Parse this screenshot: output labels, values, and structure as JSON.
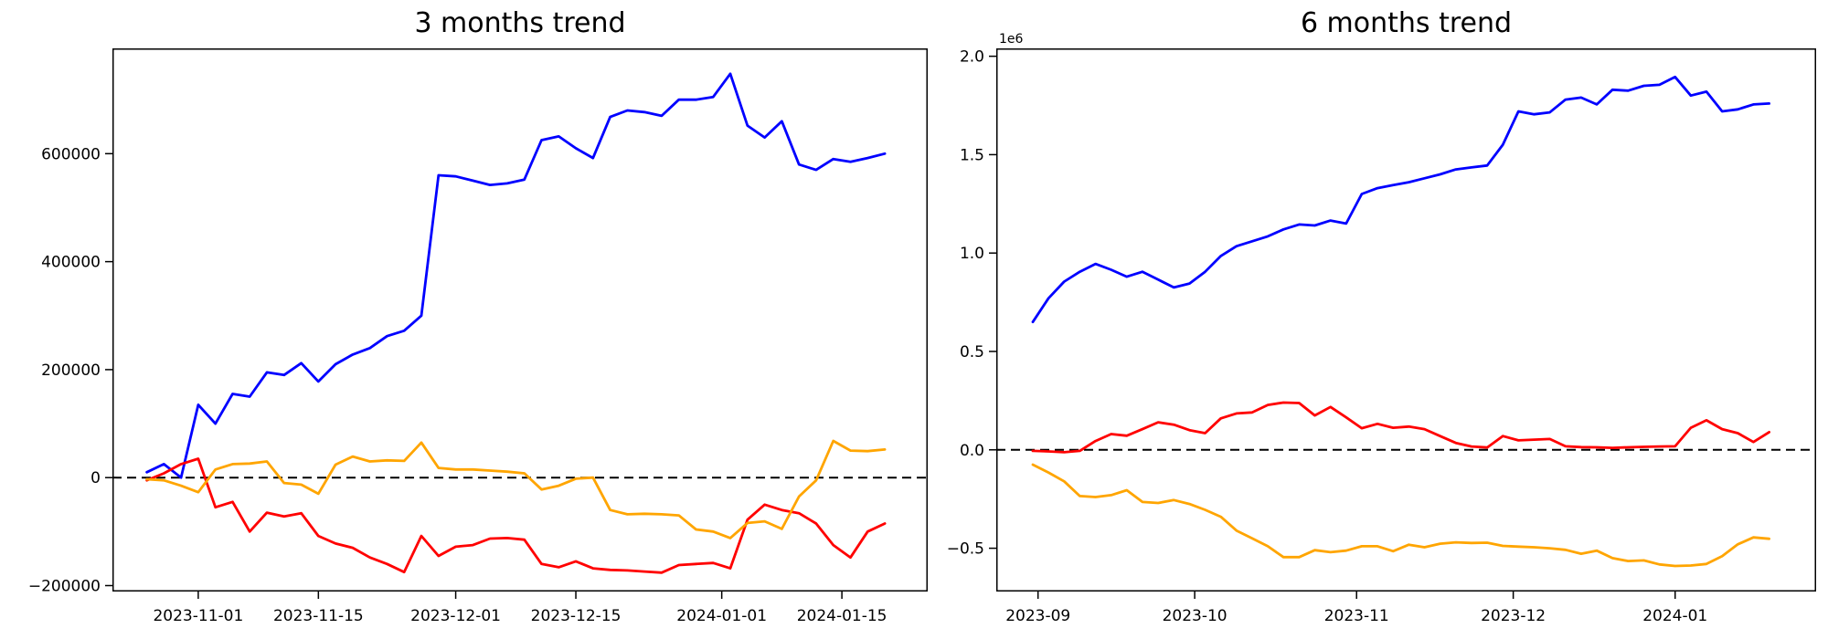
{
  "figure": {
    "background": "#ffffff",
    "zero_line_color": "#000000",
    "axis_color": "#000000"
  },
  "chart_data": [
    {
      "type": "line",
      "title": "3 months trend",
      "grid": false,
      "legend": "none",
      "zero_line_dashed": true,
      "y_offset_label": "",
      "xlim": [
        "2023-10-22",
        "2024-01-25"
      ],
      "ylim": [
        -211000,
        795000
      ],
      "xticks": [
        {
          "date": "2023-11-01",
          "label": "2023-11-01"
        },
        {
          "date": "2023-11-15",
          "label": "2023-11-15"
        },
        {
          "date": "2023-12-01",
          "label": "2023-12-01"
        },
        {
          "date": "2023-12-15",
          "label": "2023-12-15"
        },
        {
          "date": "2024-01-01",
          "label": "2024-01-01"
        },
        {
          "date": "2024-01-15",
          "label": "2024-01-15"
        }
      ],
      "yticks": [
        {
          "value": -200000,
          "label": "−200000"
        },
        {
          "value": 0,
          "label": "0"
        },
        {
          "value": 200000,
          "label": "200000"
        },
        {
          "value": 400000,
          "label": "400000"
        },
        {
          "value": 600000,
          "label": "600000"
        }
      ],
      "x": [
        "2023-10-26",
        "2023-10-28",
        "2023-10-30",
        "2023-11-01",
        "2023-11-03",
        "2023-11-05",
        "2023-11-07",
        "2023-11-09",
        "2023-11-11",
        "2023-11-13",
        "2023-11-15",
        "2023-11-17",
        "2023-11-19",
        "2023-11-21",
        "2023-11-23",
        "2023-11-25",
        "2023-11-27",
        "2023-11-29",
        "2023-12-01",
        "2023-12-03",
        "2023-12-05",
        "2023-12-07",
        "2023-12-09",
        "2023-12-11",
        "2023-12-13",
        "2023-12-15",
        "2023-12-17",
        "2023-12-19",
        "2023-12-21",
        "2023-12-23",
        "2023-12-25",
        "2023-12-27",
        "2023-12-29",
        "2023-12-31",
        "2024-01-02",
        "2024-01-04",
        "2024-01-06",
        "2024-01-08",
        "2024-01-10",
        "2024-01-12",
        "2024-01-14",
        "2024-01-16",
        "2024-01-18",
        "2024-01-20"
      ],
      "series": [
        {
          "name": "blue-line",
          "color": "#0000ff",
          "values": [
            10000,
            25000,
            0,
            135000,
            100000,
            155000,
            150000,
            195000,
            190000,
            212000,
            178000,
            210000,
            228000,
            240000,
            262000,
            272000,
            300000,
            560000,
            558000,
            550000,
            542000,
            545000,
            552000,
            625000,
            632000,
            610000,
            592000,
            668000,
            680000,
            677000,
            670000,
            700000,
            700000,
            705000,
            748000,
            652000,
            630000,
            660000,
            580000,
            570000,
            590000,
            585000,
            592000,
            600000
          ]
        },
        {
          "name": "red-line",
          "color": "#ff0000",
          "values": [
            -5000,
            8000,
            25000,
            35000,
            -55000,
            -45000,
            -100000,
            -65000,
            -72000,
            -66000,
            -108000,
            -122000,
            -130000,
            -148000,
            -160000,
            -175000,
            -108000,
            -145000,
            -128000,
            -125000,
            -113000,
            -112000,
            -115000,
            -160000,
            -166000,
            -155000,
            -168000,
            -171000,
            -172000,
            -174000,
            -176000,
            -162000,
            -160000,
            -158000,
            -168000,
            -78000,
            -50000,
            -60000,
            -66000,
            -85000,
            -125000,
            -148000,
            -100000,
            -85000
          ]
        },
        {
          "name": "orange-line",
          "color": "#ffa500",
          "values": [
            -3000,
            -5000,
            -15000,
            -27000,
            15000,
            25000,
            26000,
            30000,
            -10000,
            -13000,
            -30000,
            24000,
            39000,
            30000,
            32000,
            31000,
            65000,
            18000,
            15000,
            15000,
            13000,
            11000,
            8000,
            -22000,
            -15000,
            -2000,
            0,
            -60000,
            -68000,
            -67000,
            -68000,
            -70000,
            -96000,
            -100000,
            -112000,
            -84000,
            -81000,
            -95000,
            -35000,
            -5000,
            68000,
            50000,
            49000,
            52000
          ]
        }
      ]
    },
    {
      "type": "line",
      "title": "6 months trend",
      "grid": false,
      "legend": "none",
      "zero_line_dashed": true,
      "y_offset_label": "1e6",
      "xlim": [
        "2023-08-24",
        "2024-01-28"
      ],
      "ylim": [
        -720000,
        2040000
      ],
      "xticks": [
        {
          "date": "2023-09-01",
          "label": "2023-09"
        },
        {
          "date": "2023-10-01",
          "label": "2023-10"
        },
        {
          "date": "2023-11-01",
          "label": "2023-11"
        },
        {
          "date": "2023-12-01",
          "label": "2023-12"
        },
        {
          "date": "2024-01-01",
          "label": "2024-01"
        }
      ],
      "yticks": [
        {
          "value": -500000,
          "label": "−0.5"
        },
        {
          "value": 0,
          "label": "0.0"
        },
        {
          "value": 500000,
          "label": "0.5"
        },
        {
          "value": 1000000,
          "label": "1.0"
        },
        {
          "value": 1500000,
          "label": "1.5"
        },
        {
          "value": 2000000,
          "label": "2.0"
        }
      ],
      "x": [
        "2023-08-31",
        "2023-09-03",
        "2023-09-06",
        "2023-09-09",
        "2023-09-12",
        "2023-09-15",
        "2023-09-18",
        "2023-09-21",
        "2023-09-24",
        "2023-09-27",
        "2023-09-30",
        "2023-10-03",
        "2023-10-06",
        "2023-10-09",
        "2023-10-12",
        "2023-10-15",
        "2023-10-18",
        "2023-10-21",
        "2023-10-24",
        "2023-10-27",
        "2023-10-30",
        "2023-11-02",
        "2023-11-05",
        "2023-11-08",
        "2023-11-11",
        "2023-11-14",
        "2023-11-17",
        "2023-11-20",
        "2023-11-23",
        "2023-11-26",
        "2023-11-29",
        "2023-12-02",
        "2023-12-05",
        "2023-12-08",
        "2023-12-11",
        "2023-12-14",
        "2023-12-17",
        "2023-12-20",
        "2023-12-23",
        "2023-12-26",
        "2023-12-29",
        "2024-01-01",
        "2024-01-04",
        "2024-01-07",
        "2024-01-10",
        "2024-01-13",
        "2024-01-16",
        "2024-01-19"
      ],
      "series": [
        {
          "name": "blue-line",
          "color": "#0000ff",
          "values": [
            650000,
            770000,
            855000,
            905000,
            945000,
            915000,
            880000,
            905000,
            865000,
            825000,
            845000,
            905000,
            985000,
            1035000,
            1060000,
            1085000,
            1120000,
            1145000,
            1140000,
            1165000,
            1150000,
            1300000,
            1330000,
            1345000,
            1360000,
            1380000,
            1400000,
            1425000,
            1435000,
            1445000,
            1550000,
            1720000,
            1705000,
            1715000,
            1780000,
            1790000,
            1755000,
            1830000,
            1825000,
            1850000,
            1855000,
            1895000,
            1800000,
            1820000,
            1720000,
            1730000,
            1755000,
            1760000
          ]
        },
        {
          "name": "red-line",
          "color": "#ff0000",
          "values": [
            -5000,
            -8000,
            -12000,
            -5000,
            45000,
            80000,
            72000,
            105000,
            140000,
            128000,
            100000,
            85000,
            160000,
            185000,
            190000,
            228000,
            240000,
            238000,
            175000,
            218000,
            165000,
            110000,
            132000,
            112000,
            118000,
            105000,
            70000,
            35000,
            17000,
            12000,
            70000,
            48000,
            52000,
            55000,
            18000,
            14000,
            13000,
            10000,
            13000,
            15000,
            17000,
            18000,
            112000,
            150000,
            105000,
            85000,
            40000,
            90000
          ]
        },
        {
          "name": "orange-line",
          "color": "#ffa500",
          "values": [
            -75000,
            -115000,
            -160000,
            -235000,
            -240000,
            -230000,
            -205000,
            -265000,
            -270000,
            -255000,
            -275000,
            -305000,
            -340000,
            -410000,
            -450000,
            -490000,
            -545000,
            -545000,
            -510000,
            -520000,
            -512000,
            -490000,
            -490000,
            -515000,
            -482000,
            -495000,
            -477000,
            -470000,
            -473000,
            -472000,
            -488000,
            -492000,
            -495000,
            -500000,
            -508000,
            -528000,
            -512000,
            -550000,
            -565000,
            -562000,
            -582000,
            -590000,
            -588000,
            -580000,
            -540000,
            -480000,
            -445000,
            -452000
          ]
        }
      ]
    }
  ]
}
